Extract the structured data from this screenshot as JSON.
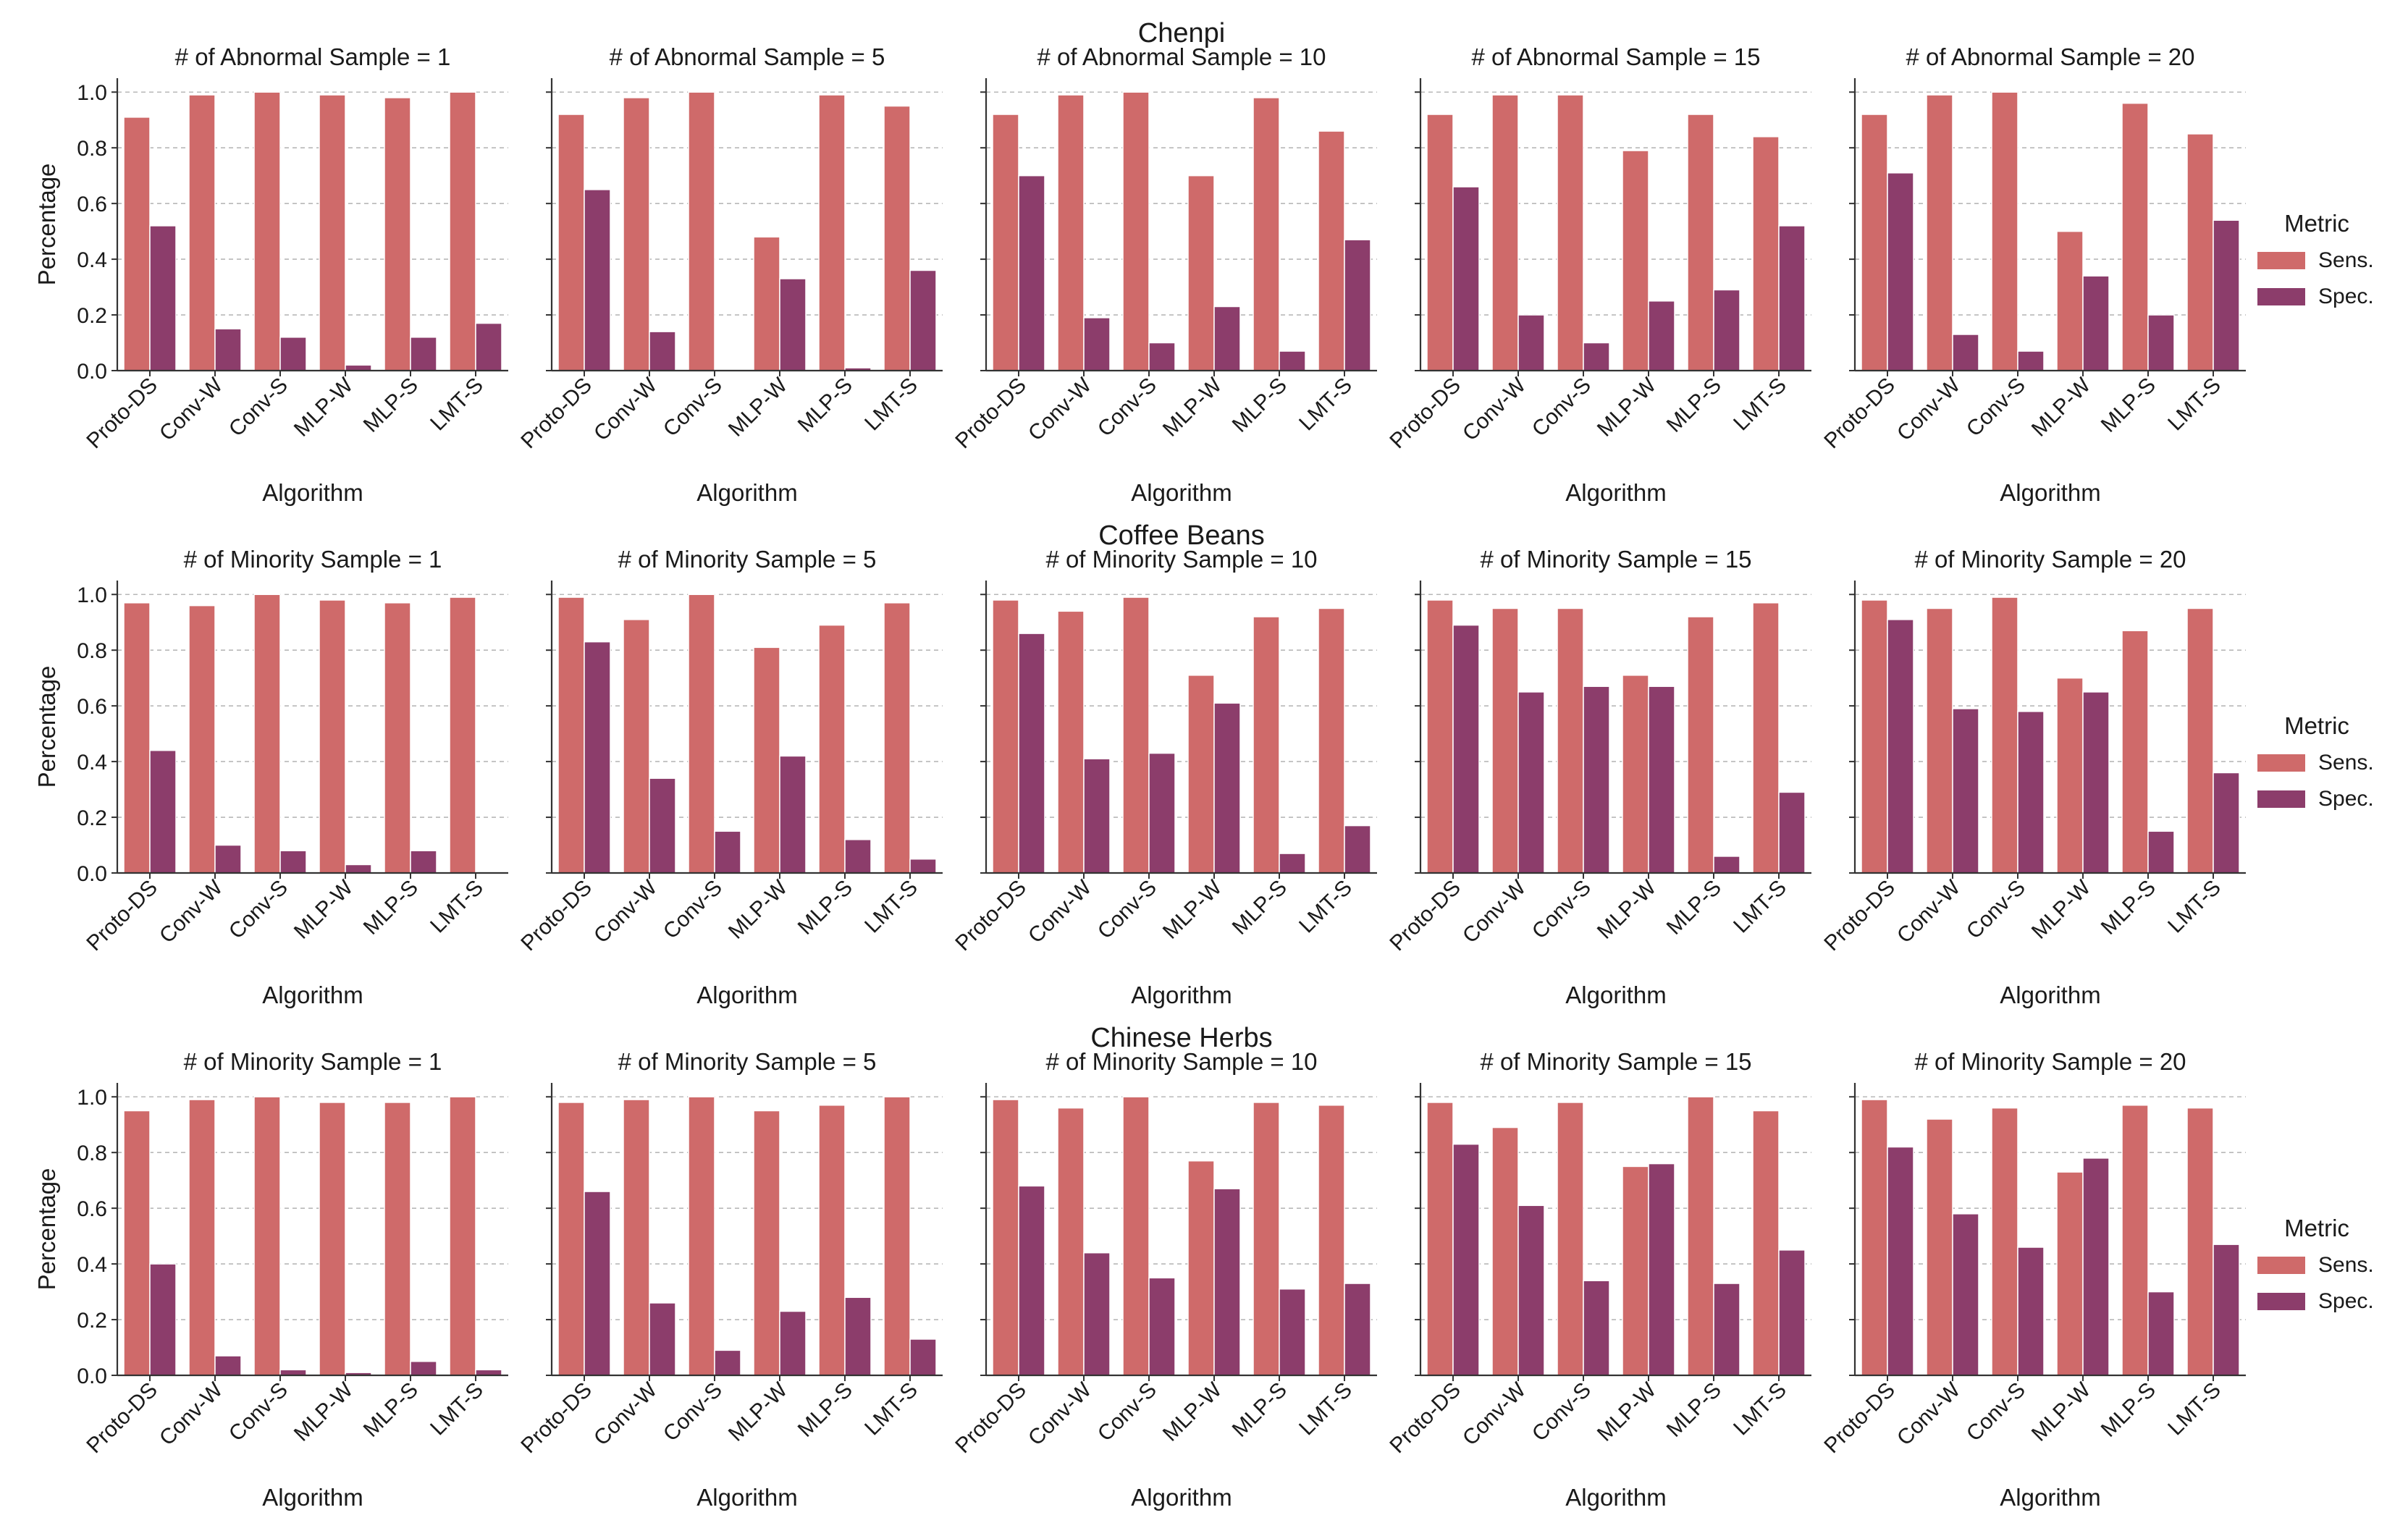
{
  "colors": {
    "sens": "#cf6a6a",
    "spec": "#8c3d6b",
    "grid": "#b8b8b8",
    "axis": "#333333"
  },
  "legend": {
    "title": "Metric",
    "items": [
      "Sens.",
      "Spec."
    ]
  },
  "chart_data": [
    {
      "dataset": "Chenpi",
      "type": "bar",
      "ylabel": "Percentage",
      "xlabel": "Algorithm",
      "ylim": [
        0,
        1.05
      ],
      "yticks": [
        "0.0",
        "0.2",
        "0.4",
        "0.6",
        "0.8",
        "1.0"
      ],
      "categories": [
        "Proto-DS",
        "Conv-W",
        "Conv-S",
        "MLP-W",
        "MLP-S",
        "LMT-S"
      ],
      "panels": [
        {
          "title": "# of Abnormal Sample = 1",
          "series": [
            {
              "name": "Sens.",
              "values": [
                0.91,
                0.99,
                1.0,
                0.99,
                0.98,
                1.0
              ]
            },
            {
              "name": "Spec.",
              "values": [
                0.52,
                0.15,
                0.12,
                0.02,
                0.12,
                0.17
              ]
            }
          ]
        },
        {
          "title": "# of Abnormal Sample = 5",
          "series": [
            {
              "name": "Sens.",
              "values": [
                0.92,
                0.98,
                1.0,
                0.48,
                0.99,
                0.95
              ]
            },
            {
              "name": "Spec.",
              "values": [
                0.65,
                0.14,
                0.0,
                0.33,
                0.01,
                0.36
              ]
            }
          ]
        },
        {
          "title": "# of Abnormal Sample = 10",
          "series": [
            {
              "name": "Sens.",
              "values": [
                0.92,
                0.99,
                1.0,
                0.7,
                0.98,
                0.86
              ]
            },
            {
              "name": "Spec.",
              "values": [
                0.7,
                0.19,
                0.1,
                0.23,
                0.07,
                0.47
              ]
            }
          ]
        },
        {
          "title": "# of Abnormal Sample = 15",
          "series": [
            {
              "name": "Sens.",
              "values": [
                0.92,
                0.99,
                0.99,
                0.79,
                0.92,
                0.84
              ]
            },
            {
              "name": "Spec.",
              "values": [
                0.66,
                0.2,
                0.1,
                0.25,
                0.29,
                0.52
              ]
            }
          ]
        },
        {
          "title": "# of Abnormal Sample = 20",
          "series": [
            {
              "name": "Sens.",
              "values": [
                0.92,
                0.99,
                1.0,
                0.5,
                0.96,
                0.85
              ]
            },
            {
              "name": "Spec.",
              "values": [
                0.71,
                0.13,
                0.07,
                0.34,
                0.2,
                0.54
              ]
            }
          ]
        }
      ]
    },
    {
      "dataset": "Coffee Beans",
      "type": "bar",
      "ylabel": "Percentage",
      "xlabel": "Algorithm",
      "ylim": [
        0,
        1.05
      ],
      "yticks": [
        "0.0",
        "0.2",
        "0.4",
        "0.6",
        "0.8",
        "1.0"
      ],
      "categories": [
        "Proto-DS",
        "Conv-W",
        "Conv-S",
        "MLP-W",
        "MLP-S",
        "LMT-S"
      ],
      "panels": [
        {
          "title": "# of Minority Sample = 1",
          "series": [
            {
              "name": "Sens.",
              "values": [
                0.97,
                0.96,
                1.0,
                0.98,
                0.97,
                0.99
              ]
            },
            {
              "name": "Spec.",
              "values": [
                0.44,
                0.1,
                0.08,
                0.03,
                0.08,
                0.0
              ]
            }
          ]
        },
        {
          "title": "# of Minority Sample = 5",
          "series": [
            {
              "name": "Sens.",
              "values": [
                0.99,
                0.91,
                1.0,
                0.81,
                0.89,
                0.97
              ]
            },
            {
              "name": "Spec.",
              "values": [
                0.83,
                0.34,
                0.15,
                0.42,
                0.12,
                0.05
              ]
            }
          ]
        },
        {
          "title": "# of Minority Sample = 10",
          "series": [
            {
              "name": "Sens.",
              "values": [
                0.98,
                0.94,
                0.99,
                0.71,
                0.92,
                0.95
              ]
            },
            {
              "name": "Spec.",
              "values": [
                0.86,
                0.41,
                0.43,
                0.61,
                0.07,
                0.17
              ]
            }
          ]
        },
        {
          "title": "# of Minority Sample = 15",
          "series": [
            {
              "name": "Sens.",
              "values": [
                0.98,
                0.95,
                0.95,
                0.71,
                0.92,
                0.97
              ]
            },
            {
              "name": "Spec.",
              "values": [
                0.89,
                0.65,
                0.67,
                0.67,
                0.06,
                0.29
              ]
            }
          ]
        },
        {
          "title": "# of Minority Sample = 20",
          "series": [
            {
              "name": "Sens.",
              "values": [
                0.98,
                0.95,
                0.99,
                0.7,
                0.87,
                0.95
              ]
            },
            {
              "name": "Spec.",
              "values": [
                0.91,
                0.59,
                0.58,
                0.65,
                0.15,
                0.36
              ]
            }
          ]
        }
      ]
    },
    {
      "dataset": "Chinese Herbs",
      "type": "bar",
      "ylabel": "Percentage",
      "xlabel": "Algorithm",
      "ylim": [
        0,
        1.05
      ],
      "yticks": [
        "0.0",
        "0.2",
        "0.4",
        "0.6",
        "0.8",
        "1.0"
      ],
      "categories": [
        "Proto-DS",
        "Conv-W",
        "Conv-S",
        "MLP-W",
        "MLP-S",
        "LMT-S"
      ],
      "panels": [
        {
          "title": "# of Minority Sample = 1",
          "series": [
            {
              "name": "Sens.",
              "values": [
                0.95,
                0.99,
                1.0,
                0.98,
                0.98,
                1.0
              ]
            },
            {
              "name": "Spec.",
              "values": [
                0.4,
                0.07,
                0.02,
                0.01,
                0.05,
                0.02
              ]
            }
          ]
        },
        {
          "title": "# of Minority Sample = 5",
          "series": [
            {
              "name": "Sens.",
              "values": [
                0.98,
                0.99,
                1.0,
                0.95,
                0.97,
                1.0
              ]
            },
            {
              "name": "Spec.",
              "values": [
                0.66,
                0.26,
                0.09,
                0.23,
                0.28,
                0.13
              ]
            }
          ]
        },
        {
          "title": "# of Minority Sample = 10",
          "series": [
            {
              "name": "Sens.",
              "values": [
                0.99,
                0.96,
                1.0,
                0.77,
                0.98,
                0.97
              ]
            },
            {
              "name": "Spec.",
              "values": [
                0.68,
                0.44,
                0.35,
                0.67,
                0.31,
                0.33
              ]
            }
          ]
        },
        {
          "title": "# of Minority Sample = 15",
          "series": [
            {
              "name": "Sens.",
              "values": [
                0.98,
                0.89,
                0.98,
                0.75,
                1.0,
                0.95
              ]
            },
            {
              "name": "Spec.",
              "values": [
                0.83,
                0.61,
                0.34,
                0.76,
                0.33,
                0.45
              ]
            }
          ]
        },
        {
          "title": "# of Minority Sample = 20",
          "series": [
            {
              "name": "Sens.",
              "values": [
                0.99,
                0.92,
                0.96,
                0.73,
                0.97,
                0.96
              ]
            },
            {
              "name": "Spec.",
              "values": [
                0.82,
                0.58,
                0.46,
                0.78,
                0.3,
                0.47
              ]
            }
          ]
        }
      ]
    }
  ]
}
